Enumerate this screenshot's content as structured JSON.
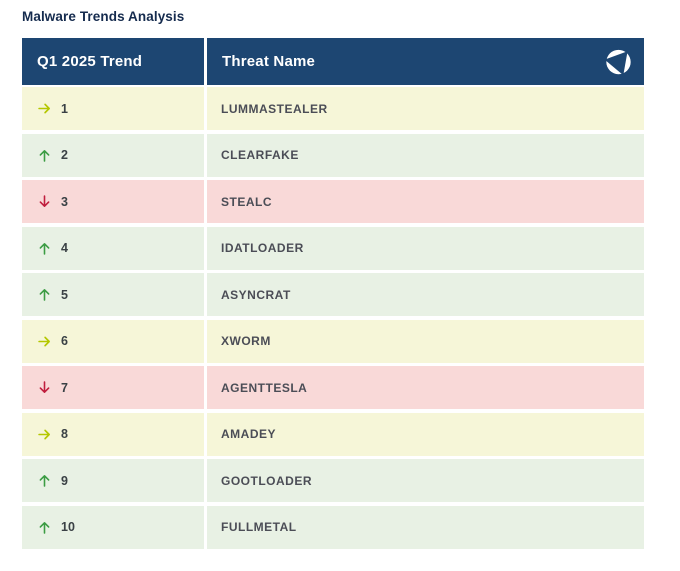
{
  "title": "Malware Trends Analysis",
  "table": {
    "header": {
      "trend_col": "Q1 2025 Trend",
      "threat_col": "Threat Name"
    },
    "logo_icon": "shutter-circle-logo",
    "rows": [
      {
        "rank": "1",
        "trend": "same",
        "trend_icon": "right-arrow-icon",
        "threat": "LUMMASTEALER"
      },
      {
        "rank": "2",
        "trend": "up",
        "trend_icon": "up-arrow-icon",
        "threat": "CLEARFAKE"
      },
      {
        "rank": "3",
        "trend": "down",
        "trend_icon": "down-arrow-icon",
        "threat": "STEALC"
      },
      {
        "rank": "4",
        "trend": "up",
        "trend_icon": "up-arrow-icon",
        "threat": "IDATLOADER"
      },
      {
        "rank": "5",
        "trend": "up",
        "trend_icon": "up-arrow-icon",
        "threat": "ASYNCRAT"
      },
      {
        "rank": "6",
        "trend": "same",
        "trend_icon": "right-arrow-icon",
        "threat": "XWORM"
      },
      {
        "rank": "7",
        "trend": "down",
        "trend_icon": "down-arrow-icon",
        "threat": "AGENTTESLA"
      },
      {
        "rank": "8",
        "trend": "same",
        "trend_icon": "right-arrow-icon",
        "threat": "AMADEY"
      },
      {
        "rank": "9",
        "trend": "up",
        "trend_icon": "up-arrow-icon",
        "threat": "GOOTLOADER"
      },
      {
        "rank": "10",
        "trend": "up",
        "trend_icon": "up-arrow-icon",
        "threat": "FULLMETAL"
      }
    ]
  },
  "colors": {
    "header_bg": "#1d4672",
    "title_text": "#152b4e",
    "rank_text": "#3a4145",
    "threat_text": "#4b4d56",
    "trend_same": {
      "arrow": "#b4c700",
      "row_bg": "#f6f6d8"
    },
    "trend_up": {
      "arrow": "#3b9c43",
      "row_bg": "#e8f1e4"
    },
    "trend_down": {
      "arrow": "#c01e3e",
      "row_bg": "#f9d9d8"
    }
  }
}
